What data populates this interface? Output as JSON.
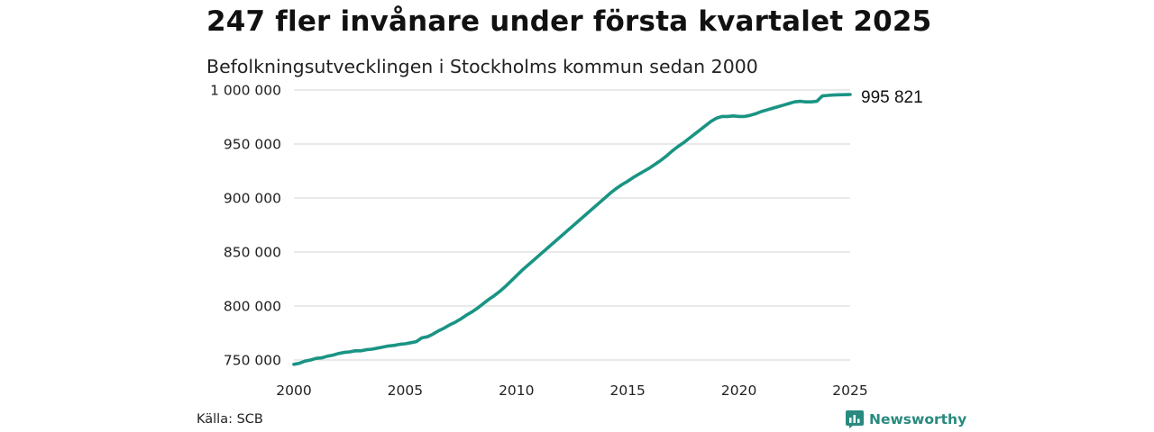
{
  "chart_data": {
    "type": "line",
    "title": "247 fler invånare under första kvartalet 2025",
    "subtitle": "Befolkningsutvecklingen i Stockholms kommun sedan 2000",
    "xlabel": "",
    "ylabel": "",
    "xlim": [
      2000,
      2025
    ],
    "ylim": [
      745000,
      1000000
    ],
    "x_ticks": [
      2000,
      2005,
      2010,
      2015,
      2020,
      2025
    ],
    "x_tick_labels": [
      "2000",
      "2005",
      "2010",
      "2015",
      "2020",
      "2025"
    ],
    "y_ticks": [
      750000,
      800000,
      850000,
      900000,
      950000,
      1000000
    ],
    "y_tick_labels": [
      "750 000",
      "800 000",
      "850 000",
      "900 000",
      "950 000",
      "1 000 000"
    ],
    "grid": true,
    "line_color": "#1a9484",
    "series": [
      {
        "x": [
          2000.0,
          2000.25,
          2000.5,
          2000.75,
          2001.0,
          2001.25,
          2001.5,
          2001.75,
          2002.0,
          2002.25,
          2002.5,
          2002.75,
          2003.0,
          2003.25,
          2003.5,
          2003.75,
          2004.0,
          2004.25,
          2004.5,
          2004.75,
          2005.0,
          2005.25,
          2005.5,
          2005.75,
          2006.0,
          2006.25,
          2006.5,
          2006.75,
          2007.0,
          2007.25,
          2007.5,
          2007.75,
          2008.0,
          2008.25,
          2008.5,
          2008.75,
          2009.0,
          2009.25,
          2009.5,
          2009.75,
          2010.0,
          2010.25,
          2010.5,
          2010.75,
          2011.0,
          2011.25,
          2011.5,
          2011.75,
          2012.0,
          2012.25,
          2012.5,
          2012.75,
          2013.0,
          2013.25,
          2013.5,
          2013.75,
          2014.0,
          2014.25,
          2014.5,
          2014.75,
          2015.0,
          2015.25,
          2015.5,
          2015.75,
          2016.0,
          2016.25,
          2016.5,
          2016.75,
          2017.0,
          2017.25,
          2017.5,
          2017.75,
          2018.0,
          2018.25,
          2018.5,
          2018.75,
          2019.0,
          2019.25,
          2019.5,
          2019.75,
          2020.0,
          2020.25,
          2020.5,
          2020.75,
          2021.0,
          2021.25,
          2021.5,
          2021.75,
          2022.0,
          2022.25,
          2022.5,
          2022.75,
          2023.0,
          2023.25,
          2023.5,
          2023.75,
          2024.0,
          2024.25,
          2024.5,
          2024.75,
          2025.0
        ],
        "values": [
          746000,
          747000,
          749000,
          750000,
          751500,
          752000,
          753500,
          754500,
          756000,
          757000,
          757500,
          758500,
          758500,
          759500,
          760000,
          761000,
          762000,
          763000,
          763500,
          764500,
          765000,
          766000,
          767000,
          770500,
          771500,
          774000,
          777000,
          779500,
          782500,
          785000,
          788000,
          791500,
          794500,
          798000,
          802000,
          806000,
          809500,
          813500,
          818000,
          823000,
          828000,
          833000,
          837500,
          842000,
          846500,
          851000,
          855500,
          860000,
          864500,
          869000,
          873500,
          878000,
          882500,
          887000,
          891500,
          896000,
          900500,
          905000,
          909000,
          912500,
          915500,
          919000,
          922000,
          925000,
          928000,
          931500,
          935000,
          939000,
          943500,
          947500,
          951000,
          955000,
          959000,
          963000,
          967000,
          971000,
          974000,
          975500,
          975500,
          976000,
          975500,
          975500,
          976500,
          978000,
          980000,
          981500,
          983000,
          984500,
          986000,
          987500,
          989000,
          989500,
          989000,
          989000,
          989500,
          994500,
          995000,
          995400,
          995600,
          995700,
          995821
        ]
      }
    ],
    "end_label": "995 821"
  },
  "footer": {
    "source": "Källa: SCB",
    "brand": "Newsworthy",
    "brand_color": "#2a8a7f",
    "brand_icon": "bar-chart-logo-icon"
  }
}
